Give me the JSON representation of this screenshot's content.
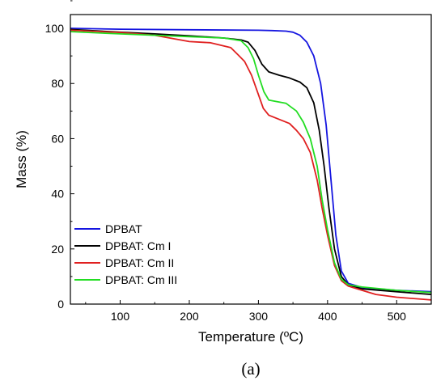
{
  "chart_data": {
    "type": "line",
    "panel_label": "(a)",
    "xlabel": "Temperature (ºC)",
    "ylabel": "Mass (%)",
    "xlim": [
      28,
      550
    ],
    "ylim": [
      0,
      105
    ],
    "xticks": [
      100,
      200,
      300,
      400,
      500
    ],
    "yticks": [
      0,
      20,
      40,
      60,
      80,
      100
    ],
    "grid": false,
    "legend_position": "bottom-left",
    "series": [
      {
        "name": "DPBAT",
        "color": "#1515e0",
        "points": [
          [
            28,
            100
          ],
          [
            100,
            99.7
          ],
          [
            200,
            99.5
          ],
          [
            300,
            99.3
          ],
          [
            320,
            99.2
          ],
          [
            340,
            99
          ],
          [
            350,
            98.6
          ],
          [
            360,
            97.5
          ],
          [
            370,
            95
          ],
          [
            380,
            90
          ],
          [
            390,
            80
          ],
          [
            398,
            65
          ],
          [
            405,
            45
          ],
          [
            412,
            25
          ],
          [
            420,
            12
          ],
          [
            430,
            7.5
          ],
          [
            450,
            6
          ],
          [
            500,
            5
          ],
          [
            550,
            4.5
          ]
        ]
      },
      {
        "name": "DPBAT: Cm I",
        "color": "#000000",
        "points": [
          [
            28,
            99.6
          ],
          [
            100,
            98.6
          ],
          [
            150,
            98
          ],
          [
            200,
            97.3
          ],
          [
            250,
            96.5
          ],
          [
            275,
            95.8
          ],
          [
            285,
            95
          ],
          [
            295,
            92
          ],
          [
            305,
            87
          ],
          [
            315,
            84.2
          ],
          [
            330,
            83
          ],
          [
            345,
            82
          ],
          [
            360,
            80.5
          ],
          [
            370,
            78.5
          ],
          [
            380,
            73
          ],
          [
            388,
            63
          ],
          [
            395,
            50
          ],
          [
            402,
            35
          ],
          [
            410,
            20
          ],
          [
            420,
            10
          ],
          [
            430,
            7
          ],
          [
            450,
            5.5
          ],
          [
            500,
            4.5
          ],
          [
            550,
            3.5
          ]
        ]
      },
      {
        "name": "DPBAT: Cm II",
        "color": "#e02020",
        "points": [
          [
            28,
            99.3
          ],
          [
            100,
            98.5
          ],
          [
            150,
            97.5
          ],
          [
            200,
            95.2
          ],
          [
            230,
            94.8
          ],
          [
            260,
            93
          ],
          [
            270,
            90.5
          ],
          [
            280,
            88
          ],
          [
            290,
            83
          ],
          [
            300,
            76
          ],
          [
            307,
            71
          ],
          [
            315,
            68.5
          ],
          [
            330,
            67
          ],
          [
            345,
            65.5
          ],
          [
            355,
            63
          ],
          [
            365,
            60
          ],
          [
            375,
            55
          ],
          [
            385,
            45
          ],
          [
            392,
            35
          ],
          [
            400,
            25
          ],
          [
            410,
            14
          ],
          [
            420,
            8.5
          ],
          [
            430,
            6.5
          ],
          [
            450,
            5
          ],
          [
            470,
            3.5
          ],
          [
            500,
            2.5
          ],
          [
            550,
            1.5
          ]
        ]
      },
      {
        "name": "DPBAT: Cm III",
        "color": "#22dd22",
        "points": [
          [
            28,
            98.8
          ],
          [
            100,
            98
          ],
          [
            150,
            97.5
          ],
          [
            200,
            97
          ],
          [
            250,
            96.5
          ],
          [
            275,
            95.5
          ],
          [
            285,
            93
          ],
          [
            293,
            89
          ],
          [
            300,
            83
          ],
          [
            308,
            77
          ],
          [
            315,
            74
          ],
          [
            325,
            73.5
          ],
          [
            340,
            72.8
          ],
          [
            355,
            70
          ],
          [
            365,
            66
          ],
          [
            375,
            60
          ],
          [
            385,
            50
          ],
          [
            392,
            38
          ],
          [
            400,
            27
          ],
          [
            410,
            15
          ],
          [
            420,
            9
          ],
          [
            430,
            7
          ],
          [
            450,
            6.2
          ],
          [
            500,
            5
          ],
          [
            550,
            4.2
          ]
        ]
      }
    ]
  }
}
